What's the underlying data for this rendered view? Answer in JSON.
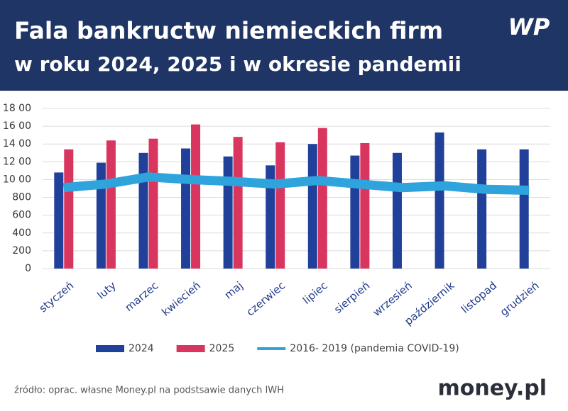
{
  "chart_data": {
    "type": "bar",
    "title": "Fala bankructw niemieckich firm",
    "subtitle": "w roku 2024, 2025 i w okresie pandemii",
    "brand": "WP",
    "source": "źródło: oprac. własne Money.pl na podstsawie danych IWH",
    "footer_brand": "money.pl",
    "categories": [
      "styczeń",
      "luty",
      "marzec",
      "kwiecień",
      "maj",
      "czerwiec",
      "lipiec",
      "sierpień",
      "wrzesień",
      "październik",
      "listopad",
      "grudzień"
    ],
    "series": [
      {
        "name": "2024",
        "type": "bar",
        "color": "#21409a",
        "values": [
          1080,
          1190,
          1300,
          1350,
          1260,
          1160,
          1400,
          1270,
          1300,
          1530,
          1340,
          1340
        ]
      },
      {
        "name": "2025",
        "type": "bar",
        "color": "#d9365f",
        "values": [
          1340,
          1440,
          1460,
          1620,
          1480,
          1420,
          1580,
          1410,
          null,
          null,
          null,
          null
        ]
      },
      {
        "name": "2016- 2019 (pandemia COVID-19)",
        "type": "line",
        "color": "#2ea3dc",
        "values": [
          910,
          950,
          1030,
          1000,
          980,
          950,
          990,
          950,
          910,
          930,
          890,
          880
        ]
      }
    ],
    "ylim": [
      0,
      1800
    ],
    "yticks": [
      0,
      200,
      400,
      600,
      800,
      {
        "value": 1000,
        "label": "10 00"
      },
      {
        "value": 1200,
        "label": "12 00"
      },
      {
        "value": 1400,
        "label": "14 00"
      },
      {
        "value": 1600,
        "label": "16 00"
      },
      {
        "value": 1800,
        "label": "18 00"
      }
    ],
    "grid": true,
    "legend": "bottom"
  }
}
